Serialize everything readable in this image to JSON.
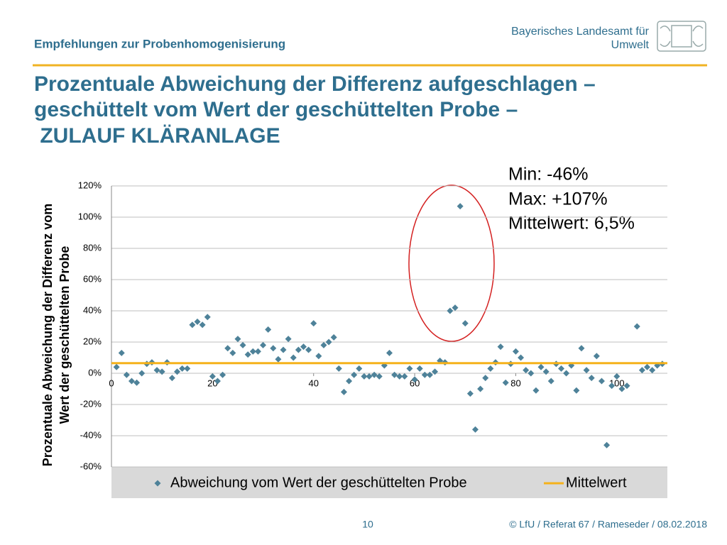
{
  "header": {
    "subtitle": "Empfehlungen zur Probenhomogenisierung",
    "org_line1": "Bayerisches Landesamt für",
    "org_line2": "Umwelt"
  },
  "title_lines": [
    "Prozentuale Abweichung der Differenz aufgeschlagen –",
    "geschüttelt vom Wert der geschüttelten Probe –",
    " ZULAUF KLÄRANLAGE"
  ],
  "footer": {
    "page": "10",
    "credit": "© LfU / Referat 67 / Rameseder / 08.02.2018"
  },
  "chart_data": {
    "type": "scatter",
    "ylabel_lines": [
      "Prozentuale Abweichung der Differenz vom",
      "Wert der geschüttelten Probe"
    ],
    "annotations": [
      "Min: -46%",
      "Max: +107%",
      "Mittelwert: 6,5%"
    ],
    "x": [
      1,
      2,
      3,
      4,
      5,
      6,
      7,
      8,
      9,
      10,
      11,
      12,
      13,
      14,
      15,
      16,
      17,
      18,
      19,
      20,
      21,
      22,
      23,
      24,
      25,
      26,
      27,
      28,
      29,
      30,
      31,
      32,
      33,
      34,
      35,
      36,
      37,
      38,
      39,
      40,
      41,
      42,
      43,
      44,
      45,
      46,
      47,
      48,
      49,
      50,
      51,
      52,
      53,
      54,
      55,
      56,
      57,
      58,
      59,
      60,
      61,
      62,
      63,
      64,
      65,
      66,
      67,
      68,
      69,
      70,
      71,
      72,
      73,
      74,
      75,
      76,
      77,
      78,
      79,
      80,
      81,
      82,
      83,
      84,
      85,
      86,
      87,
      88,
      89,
      90,
      91,
      92,
      93,
      94,
      95,
      96,
      97,
      98,
      99,
      100,
      101,
      102,
      104,
      105,
      106,
      107,
      108,
      109
    ],
    "series": [
      {
        "name": "Abweichung vom Wert der geschüttelten Probe",
        "color": "#4e8299",
        "values": [
          4,
          13,
          -1,
          -5,
          -6,
          0,
          6,
          7,
          2,
          1,
          7,
          -3,
          1,
          3,
          3,
          31,
          33,
          31,
          36,
          -2,
          -5,
          -1,
          16,
          13,
          22,
          18,
          12,
          14,
          14,
          18,
          28,
          16,
          9,
          15,
          22,
          10,
          15,
          17,
          15,
          32,
          11,
          18,
          20,
          23,
          3,
          -12,
          -5,
          -1,
          3,
          -2,
          -2,
          -1,
          -2,
          5,
          13,
          -1,
          -2,
          -2,
          3,
          -4,
          3,
          -1,
          -1,
          1,
          8,
          7,
          40,
          42,
          107,
          32,
          -13,
          -36,
          -10,
          -3,
          3,
          7,
          17,
          -6,
          6,
          14,
          10,
          2,
          0,
          -11,
          4,
          1,
          -5,
          6,
          3,
          0,
          5,
          -11,
          16,
          2,
          -3,
          11,
          -5,
          -46,
          -8,
          -2,
          -10,
          -8,
          30,
          2,
          4,
          2,
          5,
          6
        ]
      }
    ],
    "reference_line": {
      "name": "Mittelwert",
      "value": 6.5,
      "color": "#f5b21b"
    },
    "xlim": [
      0,
      110
    ],
    "xticks": [
      0,
      20,
      40,
      60,
      80,
      100
    ],
    "ylim": [
      -60,
      120
    ],
    "yticks": [
      {
        "value": -60,
        "label": "-60%"
      },
      {
        "value": -40,
        "label": "-40%"
      },
      {
        "value": -20,
        "label": "-20%"
      },
      {
        "value": 0,
        "label": "0%"
      },
      {
        "value": 20,
        "label": "20%"
      },
      {
        "value": 40,
        "label": "40%"
      },
      {
        "value": 60,
        "label": "60%"
      },
      {
        "value": 80,
        "label": "80%"
      },
      {
        "value": 100,
        "label": "100%"
      },
      {
        "value": 120,
        "label": "120%"
      }
    ],
    "grid": true
  }
}
